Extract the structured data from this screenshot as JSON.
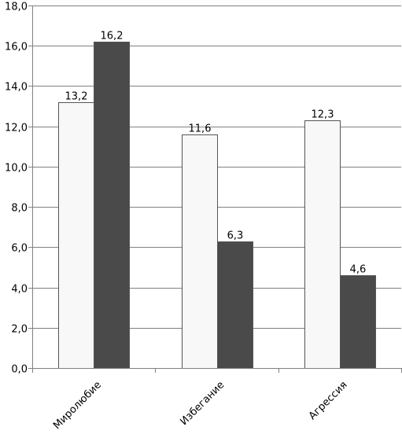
{
  "chart_data": {
    "type": "bar",
    "categories": [
      "Миролюбие",
      "Избегание",
      "Агрессия"
    ],
    "series": [
      {
        "values": [
          13.2,
          11.6,
          12.3
        ],
        "color": "#f8f8f8",
        "labels": [
          "13,2",
          "11,6",
          "12,3"
        ]
      },
      {
        "values": [
          16.2,
          6.3,
          4.6
        ],
        "color": "#4a4a4a",
        "labels": [
          "16,2",
          "6,3",
          "4,6"
        ]
      }
    ],
    "ylim": [
      0,
      18
    ],
    "yticks": [
      "0,0",
      "2,0",
      "4,0",
      "6,0",
      "8,0",
      "10,0",
      "12,0",
      "14,0",
      "16,0",
      "18,0"
    ],
    "ytick_values": [
      0,
      2,
      4,
      6,
      8,
      10,
      12,
      14,
      16,
      18
    ],
    "grid": true,
    "title": "",
    "xlabel": "",
    "ylabel": "",
    "legend": "none"
  }
}
